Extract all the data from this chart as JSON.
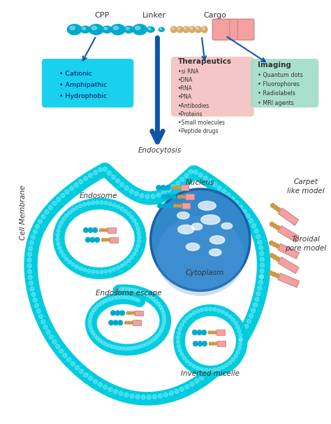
{
  "bg_color": "#ffffff",
  "border_color": "#4488bb",
  "cpp_color": "#00aacc",
  "linker_color": "#d4a96a",
  "cargo_color": "#f4a0a0",
  "arrow_color": "#1155aa",
  "box_cpp_color": "#00ccee",
  "box_therapeutics_color": "#f4c0c0",
  "box_imaging_color": "#a0ddc8",
  "membrane_outer_color": "#00ccdd",
  "membrane_inner_color": "#dd4444",
  "nucleus_color": "#2277cc",
  "text_cpp": "CPP",
  "text_linker": "Linker",
  "text_cargo": "Cargo",
  "text_box1": "  Cationic\n  Amphipathic\n  Hydrophobic",
  "text_therapeutics_title": "Therapeutics",
  "text_therapeutics": " si RNA\n DNA\n RNA\n PNA\n Antibodies\n Proteins\n Small molecules\n Peptide drugs",
  "text_imaging_title": "Imaging",
  "text_imaging": " Quantum dots\n Fluorophores\n Radiolabels\n MRI agents",
  "label_endocytosis": "Endocytosis",
  "label_endosome": "Endosome",
  "label_endosome_escape": "Endosome escape",
  "label_nucleus": "Nucleus",
  "label_cytoplasm": "Cytoplasm",
  "label_inverted": "Inverted micelle",
  "label_carpet": "Carpet\nlike model",
  "label_toroidal": "Toroidal\npore model",
  "label_cell_membrane": "Cell Membrane"
}
